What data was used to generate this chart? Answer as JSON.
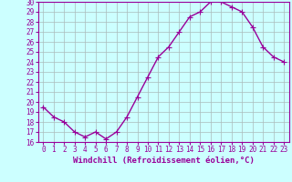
{
  "x": [
    0,
    1,
    2,
    3,
    4,
    5,
    6,
    7,
    8,
    9,
    10,
    11,
    12,
    13,
    14,
    15,
    16,
    17,
    18,
    19,
    20,
    21,
    22,
    23
  ],
  "y": [
    19.5,
    18.5,
    18.0,
    17.0,
    16.5,
    17.0,
    16.3,
    17.0,
    18.5,
    20.5,
    22.5,
    24.5,
    25.5,
    27.0,
    28.5,
    29.0,
    30.0,
    30.0,
    29.5,
    29.0,
    27.5,
    25.5,
    24.5,
    24.0
  ],
  "line_color": "#990099",
  "marker": "+",
  "marker_size": 4,
  "bg_color": "#ccffff",
  "grid_color": "#aabbbb",
  "xlabel": "Windchill (Refroidissement éolien,°C)",
  "ylim": [
    16,
    30
  ],
  "xlim_min": -0.5,
  "xlim_max": 23.5,
  "yticks": [
    16,
    17,
    18,
    19,
    20,
    21,
    22,
    23,
    24,
    25,
    26,
    27,
    28,
    29,
    30
  ],
  "xticks": [
    0,
    1,
    2,
    3,
    4,
    5,
    6,
    7,
    8,
    9,
    10,
    11,
    12,
    13,
    14,
    15,
    16,
    17,
    18,
    19,
    20,
    21,
    22,
    23
  ],
  "tick_label_color": "#990099",
  "tick_label_size": 5.5,
  "xlabel_size": 6.5,
  "xlabel_color": "#990099",
  "spine_color": "#990099",
  "line_width": 1.0
}
